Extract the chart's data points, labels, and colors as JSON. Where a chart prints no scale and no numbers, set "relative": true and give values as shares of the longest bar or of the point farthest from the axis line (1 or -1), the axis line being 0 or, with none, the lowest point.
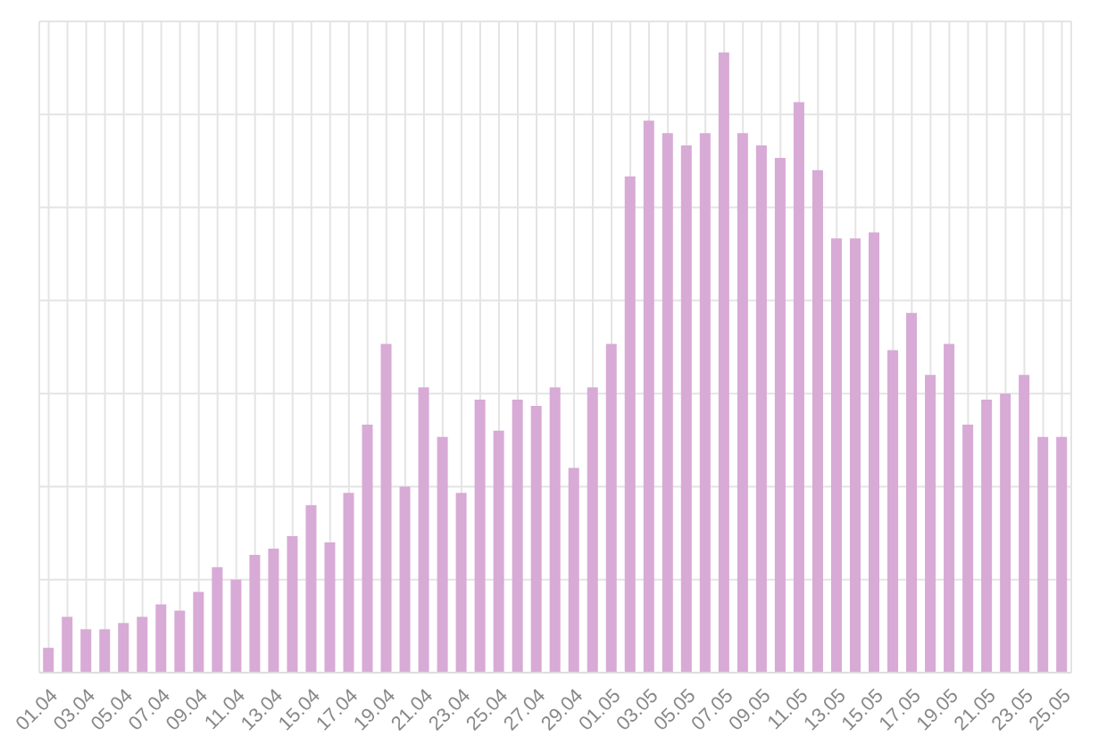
{
  "chart_data": {
    "type": "bar",
    "relative": true,
    "grid": true,
    "color": "#d8aad6",
    "categories": [
      "01.04",
      null,
      "03.04",
      null,
      "05.04",
      null,
      "07.04",
      null,
      "09.04",
      null,
      "11.04",
      null,
      "13.04",
      null,
      "15.04",
      null,
      "17.04",
      null,
      "19.04",
      null,
      "21.04",
      null,
      "23.04",
      null,
      "25.04",
      null,
      "27.04",
      null,
      "29.04",
      null,
      "01.05",
      null,
      "03.05",
      null,
      "05.05",
      null,
      "07.05",
      null,
      "09.05",
      null,
      "11.05",
      null,
      "13.05",
      null,
      "15.05",
      null,
      "17.05",
      null,
      "19.05",
      null,
      "21.05",
      null,
      "23.05",
      null,
      "25.05"
    ],
    "values": [
      0.04,
      0.09,
      0.07,
      0.07,
      0.08,
      0.09,
      0.11,
      0.1,
      0.13,
      0.17,
      0.15,
      0.19,
      0.2,
      0.22,
      0.27,
      0.21,
      0.29,
      0.4,
      0.53,
      0.3,
      0.46,
      0.38,
      0.29,
      0.44,
      0.39,
      0.44,
      0.43,
      0.46,
      0.33,
      0.46,
      0.53,
      0.8,
      0.89,
      0.87,
      0.85,
      0.87,
      1,
      0.87,
      0.85,
      0.83,
      0.92,
      0.81,
      0.7,
      0.7,
      0.71,
      0.52,
      0.58,
      0.48,
      0.53,
      0.4,
      0.44,
      0.45,
      0.48,
      0.38,
      0.38
    ]
  }
}
